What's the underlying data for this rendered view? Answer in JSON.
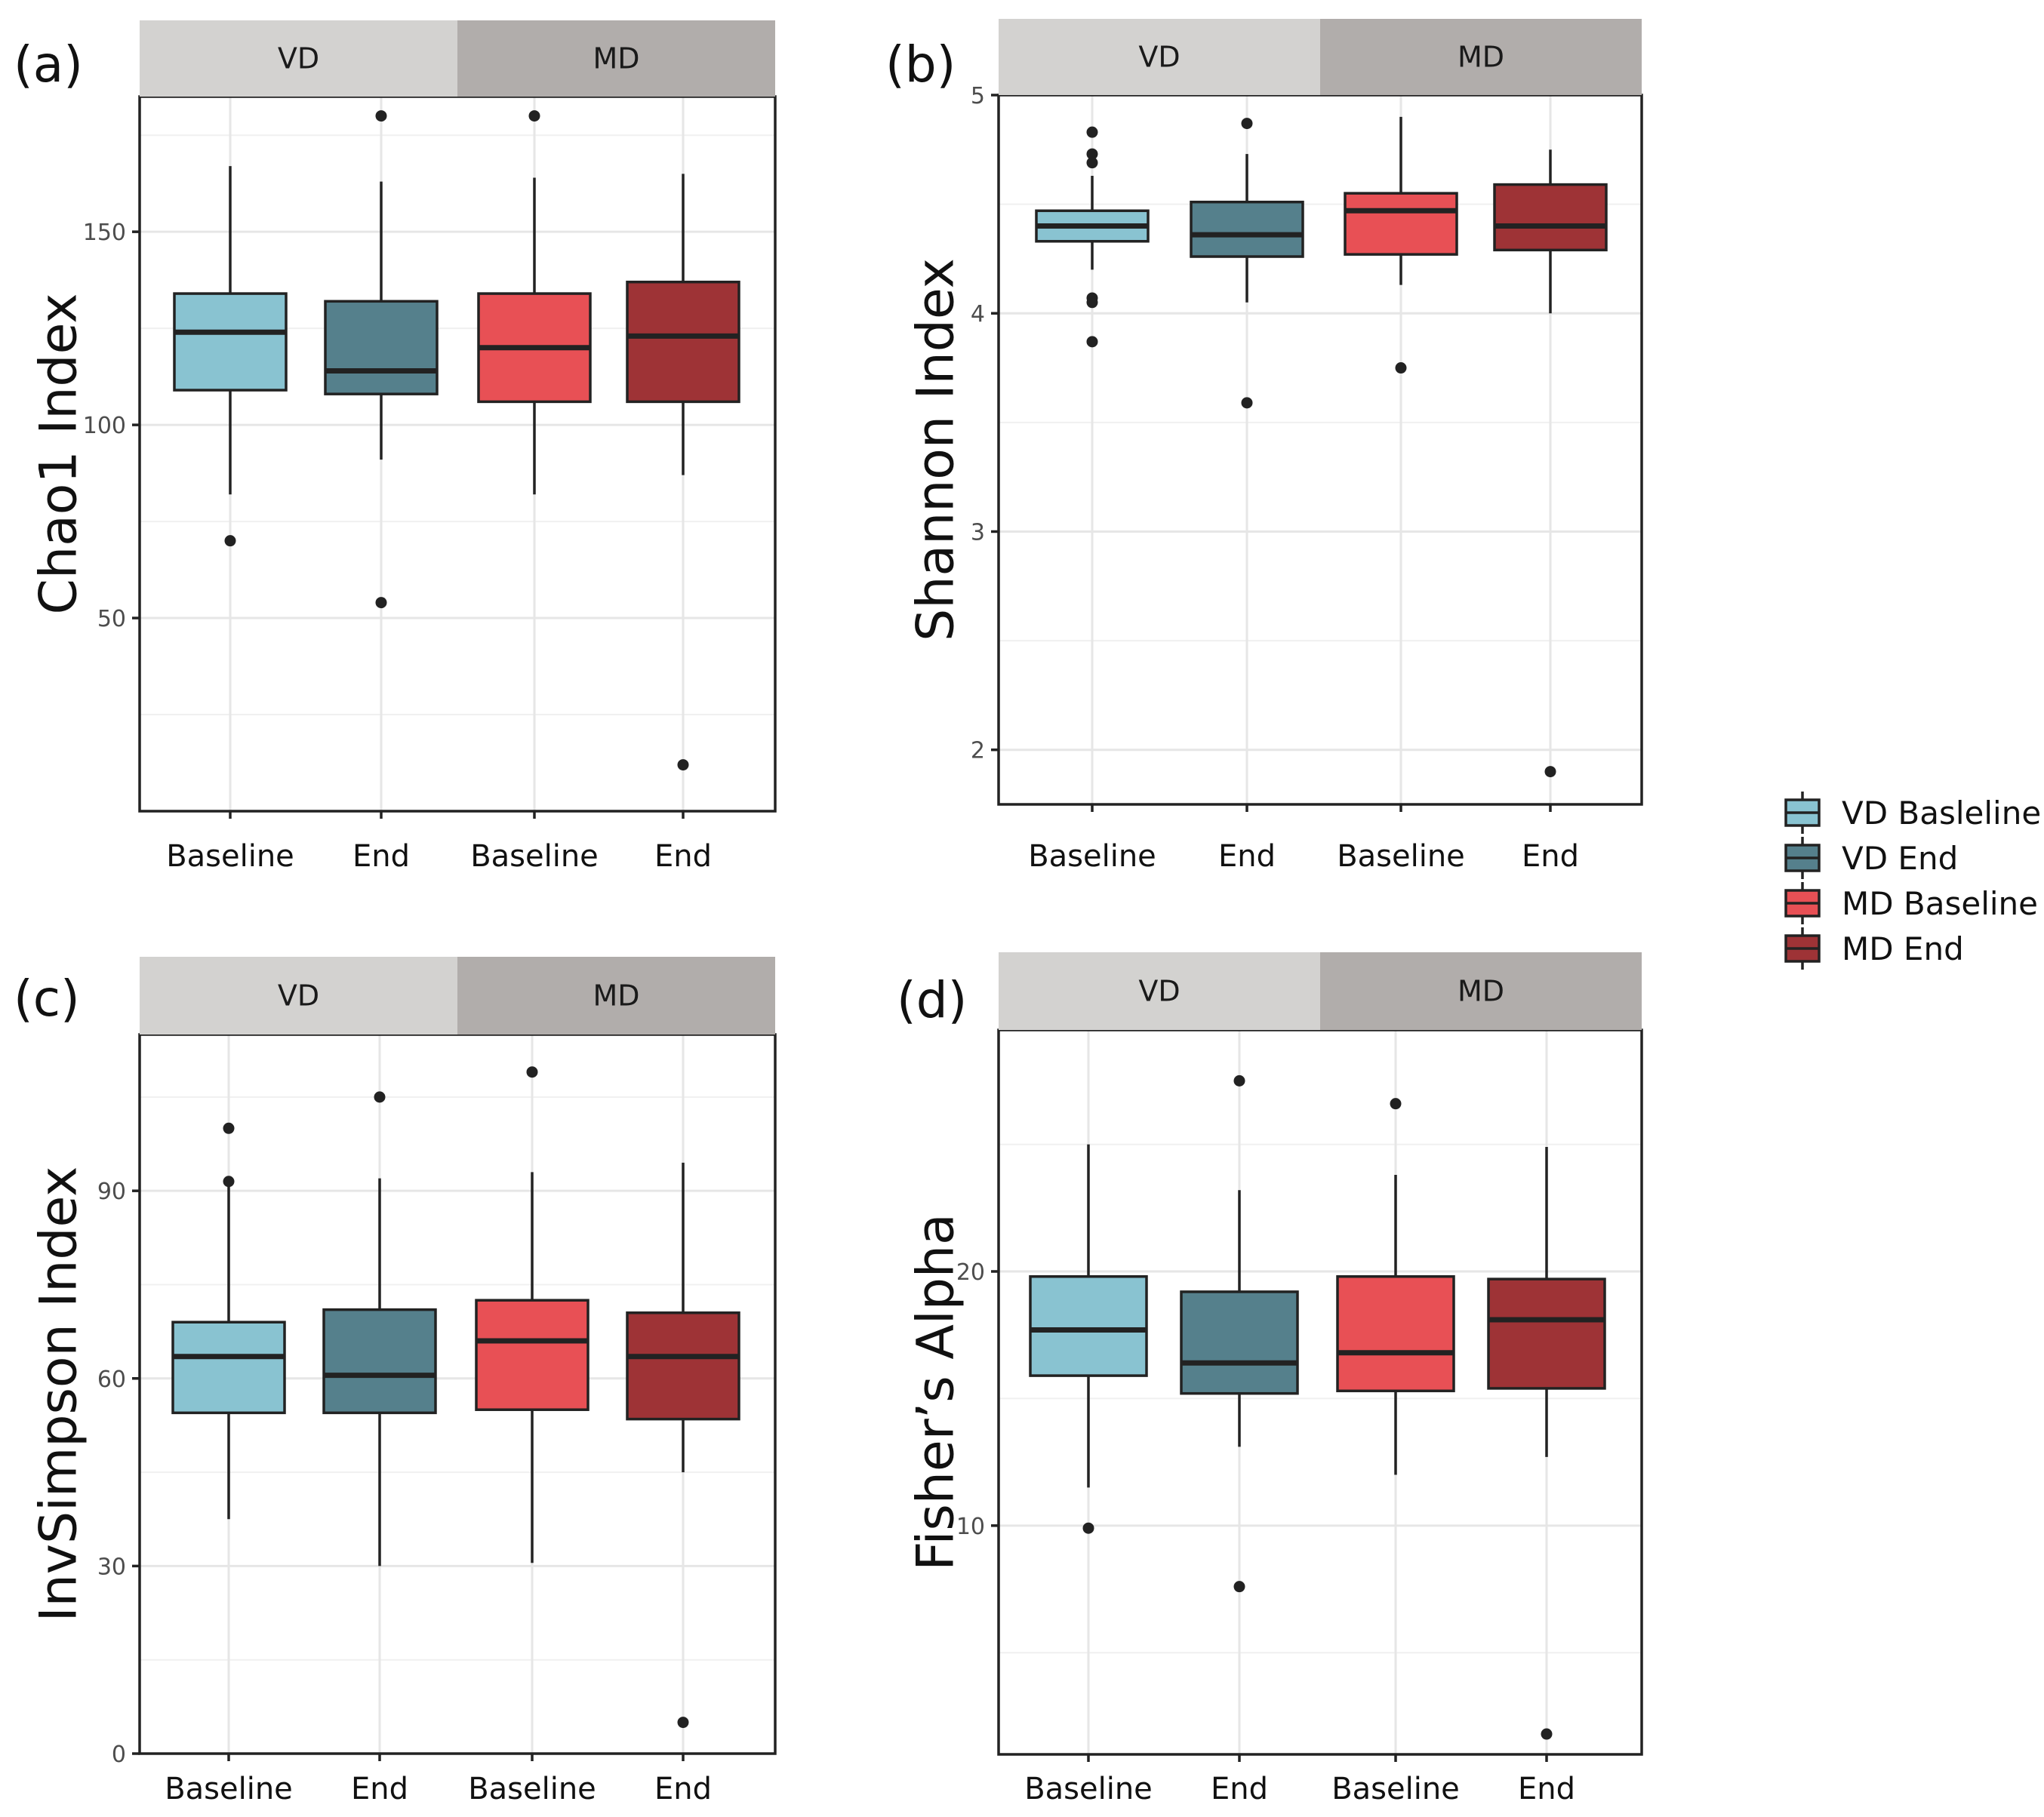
{
  "legend": {
    "items": [
      {
        "label": "VD Basleline",
        "color": "#89C3D1"
      },
      {
        "label": "VD End",
        "color": "#55808C"
      },
      {
        "label": "MD Baseline",
        "color": "#E85055"
      },
      {
        "label": "MD End",
        "color": "#9E3336"
      }
    ]
  },
  "colors": {
    "strip_left": "#d3d2d0",
    "strip_right": "#b1adab"
  },
  "chart_data": [
    {
      "type": "box",
      "panel": "(a)",
      "ylabel": "Chao1 Index",
      "ylim": [
        0,
        185
      ],
      "yticks": [
        50,
        100,
        150
      ],
      "facets": [
        "VD",
        "MD"
      ],
      "categories": [
        "Baseline",
        "End",
        "Baseline",
        "End"
      ],
      "boxes": [
        {
          "series": "VD Basleline",
          "whisker_low": 82,
          "q1": 109,
          "median": 124,
          "q3": 134,
          "whisker_high": 167,
          "outliers": [
            70
          ]
        },
        {
          "series": "VD End",
          "whisker_low": 91,
          "q1": 108,
          "median": 114,
          "q3": 132,
          "whisker_high": 163,
          "outliers": [
            180,
            54
          ]
        },
        {
          "series": "MD Baseline",
          "whisker_low": 82,
          "q1": 106,
          "median": 120,
          "q3": 134,
          "whisker_high": 164,
          "outliers": [
            180
          ]
        },
        {
          "series": "MD End",
          "whisker_low": 87,
          "q1": 106,
          "median": 123,
          "q3": 137,
          "whisker_high": 165,
          "outliers": [
            12
          ]
        }
      ]
    },
    {
      "type": "box",
      "panel": "(b)",
      "ylabel": "Shannon Index",
      "ylim": [
        1.75,
        5.0
      ],
      "yticks": [
        2,
        3,
        4,
        5
      ],
      "facets": [
        "VD",
        "MD"
      ],
      "categories": [
        "Baseline",
        "End",
        "Baseline",
        "End"
      ],
      "boxes": [
        {
          "series": "VD Basleline",
          "whisker_low": 4.2,
          "q1": 4.33,
          "median": 4.4,
          "q3": 4.47,
          "whisker_high": 4.63,
          "outliers": [
            4.83,
            4.73,
            4.69,
            4.07,
            4.05,
            3.87
          ]
        },
        {
          "series": "VD End",
          "whisker_low": 4.05,
          "q1": 4.26,
          "median": 4.36,
          "q3": 4.51,
          "whisker_high": 4.73,
          "outliers": [
            4.87,
            3.59
          ]
        },
        {
          "series": "MD Baseline",
          "whisker_low": 4.13,
          "q1": 4.27,
          "median": 4.47,
          "q3": 4.55,
          "whisker_high": 4.9,
          "outliers": [
            3.75
          ]
        },
        {
          "series": "MD End",
          "whisker_low": 4.0,
          "q1": 4.29,
          "median": 4.4,
          "q3": 4.59,
          "whisker_high": 4.75,
          "outliers": [
            1.9
          ]
        }
      ]
    },
    {
      "type": "box",
      "panel": "(c)",
      "ylabel": "InvSimpson Index",
      "ylim": [
        0,
        115
      ],
      "yticks": [
        0,
        30,
        60,
        90
      ],
      "facets": [
        "VD",
        "MD"
      ],
      "categories": [
        "Baseline",
        "End",
        "Baseline",
        "End"
      ],
      "boxes": [
        {
          "series": "VD Basleline",
          "whisker_low": 37.5,
          "q1": 54.5,
          "median": 63.5,
          "q3": 69,
          "whisker_high": 91,
          "outliers": [
            100,
            91.5
          ]
        },
        {
          "series": "VD End",
          "whisker_low": 30,
          "q1": 54.5,
          "median": 60.5,
          "q3": 71,
          "whisker_high": 92,
          "outliers": [
            105
          ]
        },
        {
          "series": "MD Baseline",
          "whisker_low": 30.5,
          "q1": 55,
          "median": 66,
          "q3": 72.5,
          "whisker_high": 93,
          "outliers": [
            109
          ]
        },
        {
          "series": "MD End",
          "whisker_low": 45,
          "q1": 53.5,
          "median": 63.5,
          "q3": 70.5,
          "whisker_high": 94.5,
          "outliers": [
            5
          ]
        }
      ]
    },
    {
      "type": "box",
      "panel": "(d)",
      "ylabel": "Fisher’s Alpha",
      "ylim": [
        1,
        29.5
      ],
      "yticks": [
        10,
        20
      ],
      "facets": [
        "VD",
        "MD"
      ],
      "categories": [
        "Baseline",
        "End",
        "Baseline",
        "End"
      ],
      "boxes": [
        {
          "series": "VD Basleline",
          "whisker_low": 11.5,
          "q1": 15.9,
          "median": 17.7,
          "q3": 19.8,
          "whisker_high": 25,
          "outliers": [
            9.9
          ]
        },
        {
          "series": "VD End",
          "whisker_low": 13.1,
          "q1": 15.2,
          "median": 16.4,
          "q3": 19.2,
          "whisker_high": 23.2,
          "outliers": [
            27.5,
            7.6
          ]
        },
        {
          "series": "MD Baseline",
          "whisker_low": 12,
          "q1": 15.3,
          "median": 16.8,
          "q3": 19.8,
          "whisker_high": 23.8,
          "outliers": [
            26.6
          ]
        },
        {
          "series": "MD End",
          "whisker_low": 12.7,
          "q1": 15.4,
          "median": 18.1,
          "q3": 19.7,
          "whisker_high": 24.9,
          "outliers": [
            1.8
          ]
        }
      ]
    }
  ]
}
